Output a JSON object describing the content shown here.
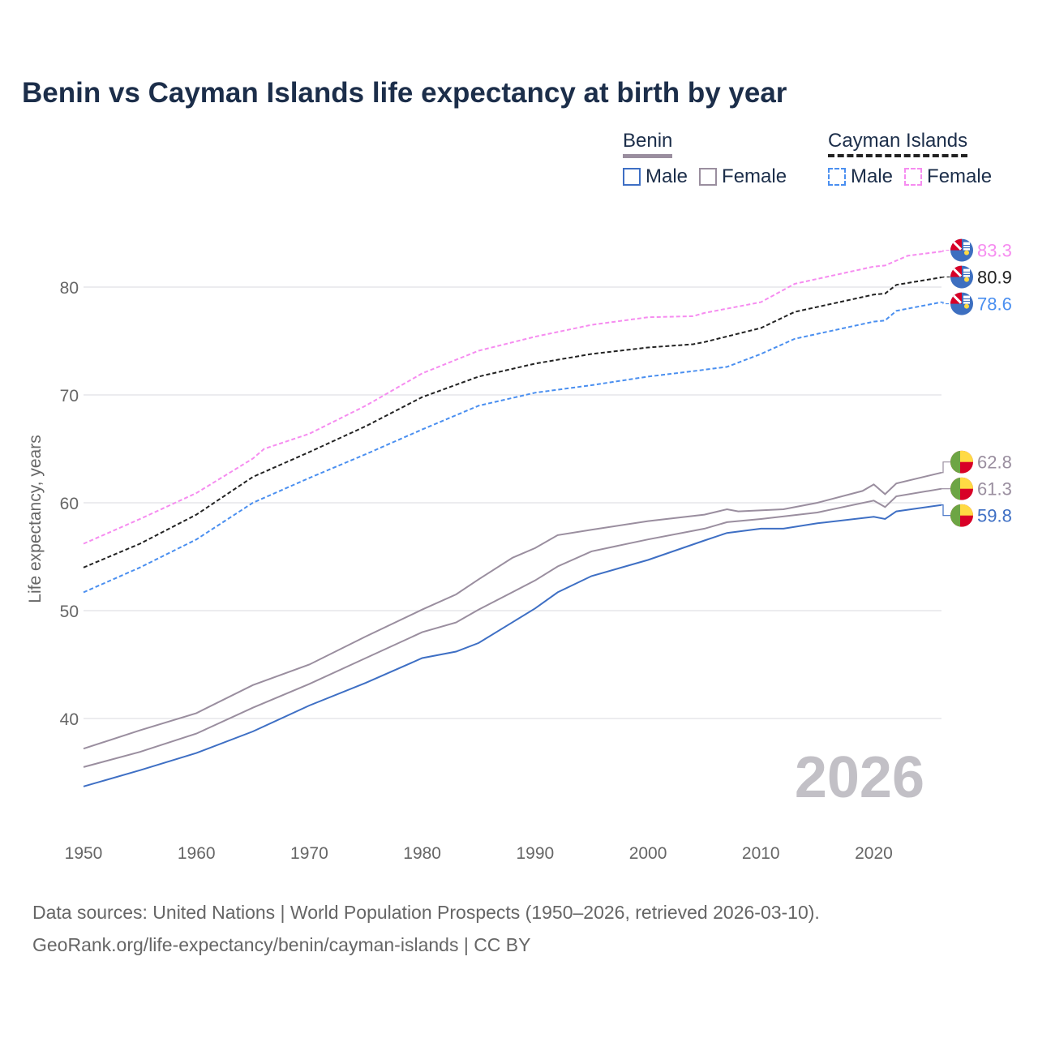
{
  "title": "Benin vs Cayman Islands life expectancy at birth by year",
  "legend": {
    "groups": [
      {
        "name": "Benin",
        "items": [
          {
            "label": "Male"
          },
          {
            "label": "Female"
          }
        ]
      },
      {
        "name": "Cayman Islands",
        "items": [
          {
            "label": "Male"
          },
          {
            "label": "Female"
          }
        ]
      }
    ]
  },
  "year_watermark": "2026",
  "source": {
    "line1": "Data sources: United Nations | World Population Prospects (1950–2026, retrieved 2026-03-10).",
    "line2": "GeoRank.org/life-expectancy/benin/cayman-islands | CC BY"
  },
  "chart_data": {
    "type": "line",
    "title": "Benin vs Cayman Islands life expectancy at birth by year",
    "xlabel": "",
    "ylabel": "Life expectancy, years",
    "xlim": [
      1950,
      2026
    ],
    "ylim": [
      32,
      86
    ],
    "xticks": [
      1950,
      1960,
      1970,
      1980,
      1990,
      2000,
      2010,
      2020
    ],
    "yticks": [
      40,
      50,
      60,
      70,
      80
    ],
    "grid": true,
    "series": [
      {
        "name": "Cayman Islands Female",
        "country": "cayman",
        "color": "#f68cf0",
        "dash": true,
        "end_label": "83.3",
        "points": [
          [
            1950,
            56.2
          ],
          [
            1955,
            58.5
          ],
          [
            1960,
            60.9
          ],
          [
            1965,
            64.1
          ],
          [
            1966,
            65.0
          ],
          [
            1970,
            66.4
          ],
          [
            1975,
            69.0
          ],
          [
            1980,
            72.0
          ],
          [
            1985,
            74.1
          ],
          [
            1990,
            75.4
          ],
          [
            1995,
            76.5
          ],
          [
            2000,
            77.2
          ],
          [
            2004,
            77.3
          ],
          [
            2005,
            77.6
          ],
          [
            2010,
            78.6
          ],
          [
            2013,
            80.3
          ],
          [
            2020,
            81.9
          ],
          [
            2021,
            82.0
          ],
          [
            2023,
            82.9
          ],
          [
            2026,
            83.3
          ]
        ]
      },
      {
        "name": "Cayman Islands",
        "country": "cayman",
        "color": "#222222",
        "dash": true,
        "end_label": "80.9",
        "points": [
          [
            1950,
            54.0
          ],
          [
            1955,
            56.2
          ],
          [
            1960,
            58.9
          ],
          [
            1965,
            62.4
          ],
          [
            1970,
            64.7
          ],
          [
            1975,
            67.1
          ],
          [
            1980,
            69.8
          ],
          [
            1985,
            71.7
          ],
          [
            1990,
            72.9
          ],
          [
            1995,
            73.8
          ],
          [
            2000,
            74.4
          ],
          [
            2004,
            74.7
          ],
          [
            2005,
            74.9
          ],
          [
            2010,
            76.2
          ],
          [
            2013,
            77.7
          ],
          [
            2020,
            79.3
          ],
          [
            2021,
            79.4
          ],
          [
            2022,
            80.2
          ],
          [
            2026,
            80.9
          ]
        ]
      },
      {
        "name": "Cayman Islands Male",
        "country": "cayman",
        "color": "#4a8ff0",
        "dash": true,
        "end_label": "78.6",
        "points": [
          [
            1950,
            51.7
          ],
          [
            1955,
            54.0
          ],
          [
            1960,
            56.6
          ],
          [
            1965,
            60.0
          ],
          [
            1970,
            62.3
          ],
          [
            1975,
            64.5
          ],
          [
            1980,
            66.8
          ],
          [
            1985,
            69.0
          ],
          [
            1990,
            70.2
          ],
          [
            1995,
            70.9
          ],
          [
            2000,
            71.7
          ],
          [
            2004,
            72.2
          ],
          [
            2007,
            72.6
          ],
          [
            2010,
            73.8
          ],
          [
            2013,
            75.2
          ],
          [
            2020,
            76.8
          ],
          [
            2021,
            76.9
          ],
          [
            2022,
            77.8
          ],
          [
            2026,
            78.6
          ]
        ]
      },
      {
        "name": "Benin Female",
        "country": "benin",
        "color": "#9a8e9f",
        "dash": false,
        "end_label": "62.8",
        "points": [
          [
            1950,
            37.2
          ],
          [
            1955,
            38.9
          ],
          [
            1960,
            40.5
          ],
          [
            1965,
            43.1
          ],
          [
            1970,
            45.0
          ],
          [
            1975,
            47.6
          ],
          [
            1980,
            50.1
          ],
          [
            1983,
            51.5
          ],
          [
            1985,
            52.9
          ],
          [
            1988,
            54.9
          ],
          [
            1990,
            55.8
          ],
          [
            1992,
            57.0
          ],
          [
            1995,
            57.5
          ],
          [
            2000,
            58.3
          ],
          [
            2005,
            58.9
          ],
          [
            2007,
            59.4
          ],
          [
            2008,
            59.2
          ],
          [
            2012,
            59.4
          ],
          [
            2015,
            60.0
          ],
          [
            2019,
            61.1
          ],
          [
            2020,
            61.7
          ],
          [
            2021,
            60.8
          ],
          [
            2022,
            61.8
          ],
          [
            2026,
            62.8
          ]
        ]
      },
      {
        "name": "Benin",
        "country": "benin",
        "color": "#9a8e9f",
        "dash": false,
        "end_label": "61.3",
        "points": [
          [
            1950,
            35.5
          ],
          [
            1955,
            36.9
          ],
          [
            1960,
            38.6
          ],
          [
            1965,
            41.0
          ],
          [
            1970,
            43.2
          ],
          [
            1975,
            45.6
          ],
          [
            1980,
            48.0
          ],
          [
            1983,
            48.9
          ],
          [
            1985,
            50.1
          ],
          [
            1990,
            52.8
          ],
          [
            1992,
            54.1
          ],
          [
            1995,
            55.5
          ],
          [
            2000,
            56.6
          ],
          [
            2005,
            57.6
          ],
          [
            2007,
            58.2
          ],
          [
            2010,
            58.5
          ],
          [
            2015,
            59.1
          ],
          [
            2020,
            60.2
          ],
          [
            2021,
            59.6
          ],
          [
            2022,
            60.6
          ],
          [
            2026,
            61.3
          ]
        ]
      },
      {
        "name": "Benin Male",
        "country": "benin",
        "color": "#3e6fc4",
        "dash": false,
        "end_label": "59.8",
        "points": [
          [
            1950,
            33.7
          ],
          [
            1955,
            35.2
          ],
          [
            1960,
            36.8
          ],
          [
            1965,
            38.8
          ],
          [
            1970,
            41.2
          ],
          [
            1975,
            43.3
          ],
          [
            1980,
            45.6
          ],
          [
            1983,
            46.2
          ],
          [
            1985,
            47.0
          ],
          [
            1990,
            50.2
          ],
          [
            1992,
            51.7
          ],
          [
            1995,
            53.2
          ],
          [
            2000,
            54.7
          ],
          [
            2005,
            56.5
          ],
          [
            2007,
            57.2
          ],
          [
            2010,
            57.6
          ],
          [
            2012,
            57.6
          ],
          [
            2015,
            58.1
          ],
          [
            2020,
            58.7
          ],
          [
            2021,
            58.5
          ],
          [
            2022,
            59.2
          ],
          [
            2026,
            59.8
          ]
        ]
      }
    ]
  }
}
